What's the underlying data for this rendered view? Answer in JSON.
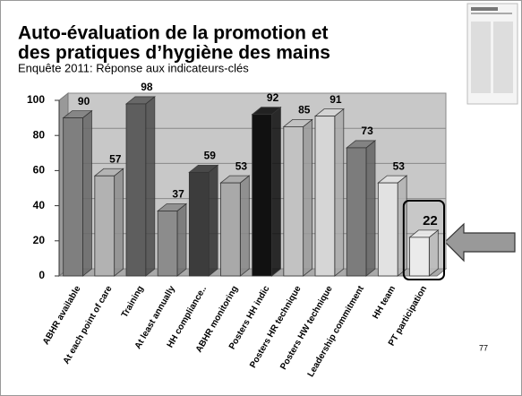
{
  "chart_data": {
    "type": "bar3d",
    "title": [
      "Auto-évaluation de la promotion et",
      "des pratiques d’hygiène des mains"
    ],
    "subtitle": "Enquête 2011: Réponse aux indicateurs-clés",
    "categories": [
      "ABHR available",
      "At each point of care",
      "Training",
      "At least annually",
      "HH compliance..",
      "ABHR monitoring",
      "Posters HH indic",
      "Posters HR technique",
      "Posters HW technique",
      "Leadership commitment",
      "HH team",
      "PT participation"
    ],
    "values": [
      90,
      57,
      98,
      37,
      59,
      53,
      92,
      85,
      91,
      73,
      53,
      22
    ],
    "colors": [
      "#7f7f7f",
      "#b2b2b2",
      "#5e5e5e",
      "#8c8c8c",
      "#3c3c3c",
      "#a9a9a9",
      "#111111",
      "#c2c2c2",
      "#d6d6d6",
      "#7c7c7c",
      "#e2e2e2",
      "#ebebeb"
    ],
    "ylim": [
      0,
      100
    ],
    "yticks": [
      0,
      20,
      40,
      60,
      80,
      100
    ],
    "grid": true
  },
  "slide_number": "77"
}
